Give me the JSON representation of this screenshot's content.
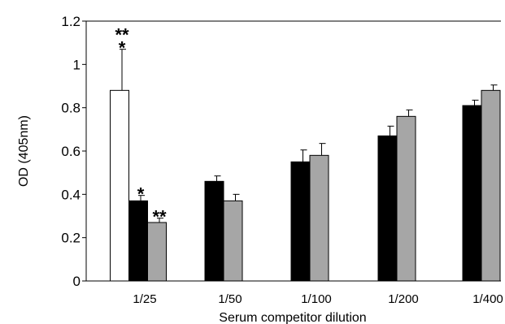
{
  "chart_data": {
    "type": "bar",
    "title": "",
    "xlabel": "Serum competitor dilution",
    "ylabel": "OD (405nm)",
    "ylim": [
      0,
      1.2
    ],
    "yticks": [
      0,
      0.2,
      0.4,
      0.6,
      0.8,
      1,
      1.2
    ],
    "ytick_labels": [
      "0",
      "0.2",
      "0.4",
      "0.6",
      "0.8",
      "1",
      "1.2"
    ],
    "categories": [
      "1/25",
      "1/50",
      "1/100",
      "1/200",
      "1/400"
    ],
    "grid": false,
    "series": [
      {
        "color": "#ffffff",
        "values": [
          0.88,
          null,
          null,
          null,
          null
        ],
        "errors": [
          0.19,
          null,
          null,
          null,
          null
        ]
      },
      {
        "color": "#000000",
        "values": [
          0.37,
          0.46,
          0.55,
          0.67,
          0.81
        ],
        "errors": [
          0.025,
          0.025,
          0.055,
          0.045,
          0.025
        ]
      },
      {
        "color": "#a6a6a6",
        "values": [
          0.27,
          0.37,
          0.58,
          0.76,
          0.88
        ],
        "errors": [
          0.02,
          0.03,
          0.055,
          0.03,
          0.025
        ]
      }
    ],
    "annotations": [
      {
        "text": "**",
        "category": "1/25",
        "series": 0,
        "level": 1
      },
      {
        "text": "*",
        "category": "1/25",
        "series": 0,
        "level": 0
      },
      {
        "text": "*",
        "category": "1/25",
        "series": 1,
        "level": 0
      },
      {
        "text": "**",
        "category": "1/25",
        "series": 2,
        "level": 0
      }
    ]
  }
}
